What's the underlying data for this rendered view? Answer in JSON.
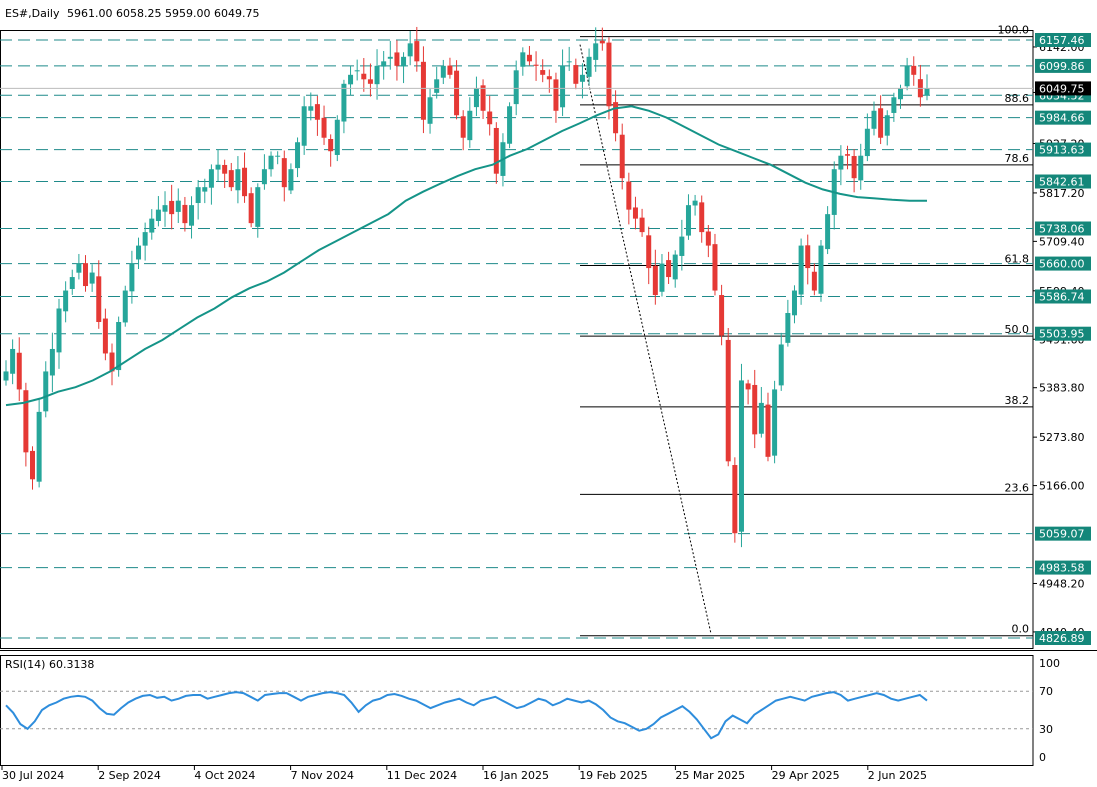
{
  "header": {
    "symbol": "ES#,Daily",
    "ohlc": "5961.00 6058.25 5959.00 6049.75"
  },
  "colors": {
    "bull": "#26a69a",
    "bear": "#e53935",
    "ma": "#159488",
    "level_label_bg": "#14877a",
    "dashed": "#1f8a8a",
    "fib": "#000000",
    "current_price_bg": "#000000"
  },
  "chart_data": {
    "type": "candlestick",
    "title": "ES#,Daily",
    "y_range": [
      4800,
      6180
    ],
    "y_ticks": [
      "6142.00",
      "6040.75",
      "5927.20",
      "5817.20",
      "5709.40",
      "5599.40",
      "5491.60",
      "5383.80",
      "5273.80",
      "5166.00",
      "4948.20",
      "4840.40"
    ],
    "x_ticks": [
      "30 Jul 2024",
      "2 Sep 2024",
      "4 Oct 2024",
      "7 Nov 2024",
      "11 Dec 2024",
      "16 Jan 2025",
      "19 Feb 2025",
      "25 Mar 2025",
      "29 Apr 2025",
      "2 Jun 2025"
    ],
    "horizontal_levels": [
      6157.46,
      6099.86,
      6034.52,
      5984.66,
      5913.63,
      5842.61,
      5738.06,
      5660.0,
      5586.74,
      5503.95,
      5059.07,
      4983.58,
      4826.89
    ],
    "horizontal_level_labels": [
      "6157.46",
      "6099.86",
      "6034.52",
      "5984.66",
      "5913.63",
      "5842.61",
      "5738.06",
      "5660.00",
      "5586.74",
      "5503.95",
      "5059.07",
      "4983.58",
      "4826.89"
    ],
    "current_price": "6049.75",
    "fibonacci": {
      "high": 6165,
      "low": 4832,
      "levels": [
        {
          "label": "100.0",
          "pct": 100
        },
        {
          "label": "88.6",
          "pct": 88.6
        },
        {
          "label": "78.6",
          "pct": 78.6
        },
        {
          "label": "61.8",
          "pct": 61.8
        },
        {
          "label": "50.0",
          "pct": 50.0
        },
        {
          "label": "38.2",
          "pct": 38.2
        },
        {
          "label": "23.6",
          "pct": 23.6
        },
        {
          "label": "0.0",
          "pct": 0
        }
      ]
    },
    "price_path": [
      5420,
      5470,
      5380,
      5240,
      5180,
      5330,
      5420,
      5470,
      5560,
      5600,
      5630,
      5660,
      5610,
      5640,
      5530,
      5460,
      5420,
      5530,
      5600,
      5660,
      5700,
      5730,
      5760,
      5780,
      5790,
      5770,
      5800,
      5750,
      5790,
      5830,
      5830,
      5870,
      5880,
      5860,
      5830,
      5870,
      5810,
      5750,
      5830,
      5870,
      5900,
      5900,
      5830,
      5870,
      5930,
      6010,
      6010,
      5980,
      5940,
      5910,
      5980,
      6060,
      6080,
      6090,
      6070,
      6060,
      6100,
      6110,
      6120,
      6100,
      6120,
      6150,
      6110,
      5980,
      6030,
      6070,
      6100,
      6080,
      5990,
      5940,
      6000,
      6050,
      6000,
      5970,
      5860,
      5930,
      6010,
      6090,
      6130,
      6110,
      6100,
      6080,
      6070,
      6000,
      6100,
      6110,
      6060,
      6080,
      6120,
      6150,
      6150,
      6010,
      5950,
      5850,
      5780,
      5760,
      5730,
      5650,
      5590,
      5660,
      5630,
      5680,
      5720,
      5790,
      5800,
      5730,
      5700,
      5600,
      5500,
      5220,
      5060,
      5400,
      5380,
      5280,
      5350,
      5230,
      5380,
      5480,
      5550,
      5600,
      5700,
      5650,
      5600,
      5700,
      5770,
      5870,
      5900,
      5900,
      5850,
      5900,
      5960,
      6000,
      5940,
      5990,
      6030,
      6050,
      6100,
      6080,
      6030,
      6050
    ],
    "ma_path": [
      5345,
      5350,
      5360,
      5375,
      5385,
      5400,
      5420,
      5445,
      5470,
      5490,
      5515,
      5540,
      5560,
      5585,
      5605,
      5620,
      5640,
      5665,
      5690,
      5710,
      5730,
      5750,
      5770,
      5800,
      5820,
      5838,
      5855,
      5870,
      5880,
      5900,
      5915,
      5935,
      5955,
      5972,
      5990,
      6005,
      6010,
      6000,
      5985,
      5965,
      5945,
      5925,
      5910,
      5895,
      5880,
      5860,
      5840,
      5825,
      5815,
      5808,
      5805,
      5802,
      5800,
      5800
    ],
    "rsi": {
      "label": "RSI(14) 60.3138",
      "range": [
        0,
        100
      ],
      "levels": [
        70,
        30
      ],
      "tick_labels": [
        "100",
        "70",
        "30",
        "0"
      ],
      "values": [
        55,
        47,
        35,
        30,
        38,
        50,
        55,
        58,
        62,
        64,
        65,
        64,
        60,
        52,
        46,
        45,
        52,
        58,
        62,
        65,
        66,
        63,
        64,
        60,
        62,
        65,
        66,
        66,
        62,
        64,
        66,
        68,
        69,
        68,
        64,
        60,
        66,
        67,
        68,
        68,
        64,
        60,
        64,
        66,
        68,
        69,
        68,
        66,
        58,
        48,
        55,
        60,
        62,
        66,
        67,
        65,
        62,
        60,
        56,
        52,
        55,
        58,
        60,
        62,
        58,
        55,
        60,
        62,
        64,
        60,
        56,
        52,
        54,
        58,
        62,
        60,
        55,
        58,
        62,
        60,
        58,
        60,
        56,
        50,
        42,
        38,
        36,
        32,
        28,
        30,
        35,
        42,
        46,
        50,
        54,
        48,
        40,
        30,
        20,
        24,
        38,
        44,
        40,
        36,
        45,
        50,
        55,
        60,
        62,
        64,
        62,
        60,
        64,
        66,
        68,
        69,
        66,
        60,
        62,
        64,
        66,
        68,
        66,
        62,
        60,
        62,
        64,
        66,
        60
      ]
    }
  }
}
